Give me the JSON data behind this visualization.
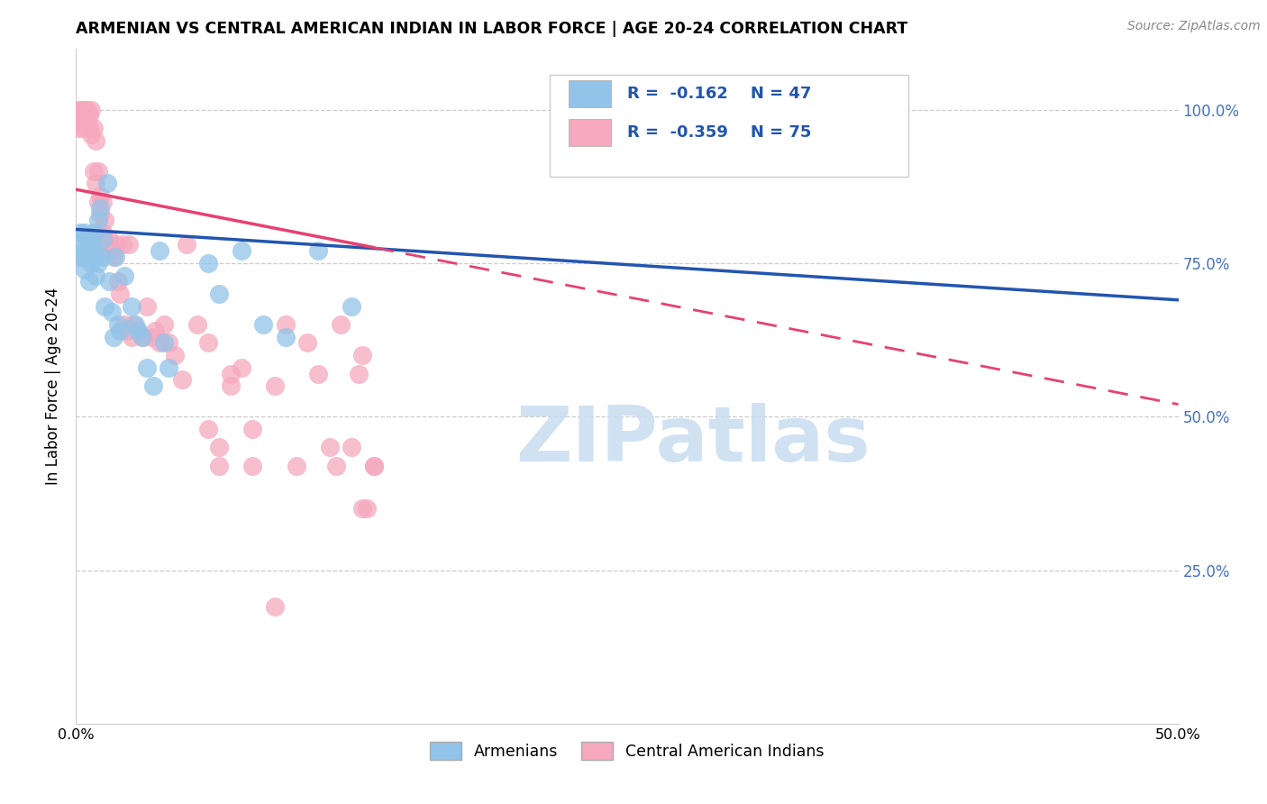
{
  "title": "ARMENIAN VS CENTRAL AMERICAN INDIAN IN LABOR FORCE | AGE 20-24 CORRELATION CHART",
  "source": "Source: ZipAtlas.com",
  "ylabel": "In Labor Force | Age 20-24",
  "xlim": [
    0.0,
    0.5
  ],
  "ylim": [
    0.0,
    1.1
  ],
  "R_armenian": "-0.162",
  "N_armenian": "47",
  "R_central": "-0.359",
  "N_central": "75",
  "legend_armenian": "Armenians",
  "legend_central": "Central American Indians",
  "armenian_color": "#92C3E8",
  "central_color": "#F5A8BE",
  "armenian_line_color": "#2255B0",
  "central_line_color": "#E84070",
  "watermark_color": "#DDEEFF",
  "background_color": "#FFFFFF",
  "armenian_x": [
    0.001,
    0.002,
    0.002,
    0.003,
    0.003,
    0.004,
    0.004,
    0.005,
    0.005,
    0.006,
    0.006,
    0.007,
    0.007,
    0.008,
    0.008,
    0.009,
    0.009,
    0.01,
    0.01,
    0.011,
    0.012,
    0.012,
    0.013,
    0.014,
    0.015,
    0.016,
    0.017,
    0.018,
    0.019,
    0.02,
    0.022,
    0.025,
    0.027,
    0.028,
    0.03,
    0.032,
    0.035,
    0.038,
    0.04,
    0.042,
    0.06,
    0.065,
    0.075,
    0.085,
    0.095,
    0.11,
    0.125
  ],
  "armenian_y": [
    0.78,
    0.76,
    0.8,
    0.77,
    0.76,
    0.74,
    0.8,
    0.79,
    0.76,
    0.78,
    0.72,
    0.75,
    0.79,
    0.77,
    0.8,
    0.76,
    0.73,
    0.82,
    0.75,
    0.84,
    0.76,
    0.79,
    0.68,
    0.88,
    0.72,
    0.67,
    0.63,
    0.76,
    0.65,
    0.64,
    0.73,
    0.68,
    0.65,
    0.64,
    0.63,
    0.58,
    0.55,
    0.77,
    0.62,
    0.58,
    0.75,
    0.7,
    0.77,
    0.65,
    0.63,
    0.77,
    0.68
  ],
  "central_x": [
    0.001,
    0.001,
    0.002,
    0.002,
    0.003,
    0.003,
    0.004,
    0.004,
    0.005,
    0.005,
    0.006,
    0.006,
    0.007,
    0.007,
    0.008,
    0.008,
    0.009,
    0.009,
    0.01,
    0.01,
    0.011,
    0.011,
    0.012,
    0.012,
    0.013,
    0.014,
    0.015,
    0.016,
    0.017,
    0.018,
    0.019,
    0.02,
    0.021,
    0.022,
    0.023,
    0.024,
    0.025,
    0.026,
    0.028,
    0.03,
    0.032,
    0.034,
    0.036,
    0.038,
    0.04,
    0.042,
    0.045,
    0.048,
    0.05,
    0.055,
    0.06,
    0.065,
    0.07,
    0.075,
    0.08,
    0.09,
    0.095,
    0.1,
    0.105,
    0.11,
    0.115,
    0.118,
    0.12,
    0.125,
    0.128,
    0.13,
    0.13,
    0.132,
    0.135,
    0.135,
    0.06,
    0.065,
    0.07,
    0.08,
    0.09
  ],
  "central_y": [
    1.0,
    0.97,
    1.0,
    0.98,
    1.0,
    0.97,
    1.0,
    0.99,
    0.98,
    1.0,
    0.99,
    0.97,
    1.0,
    0.96,
    0.97,
    0.9,
    0.95,
    0.88,
    0.9,
    0.85,
    0.83,
    0.86,
    0.85,
    0.8,
    0.82,
    0.78,
    0.79,
    0.77,
    0.76,
    0.78,
    0.72,
    0.7,
    0.78,
    0.65,
    0.64,
    0.78,
    0.63,
    0.65,
    0.64,
    0.63,
    0.68,
    0.63,
    0.64,
    0.62,
    0.65,
    0.62,
    0.6,
    0.56,
    0.78,
    0.65,
    0.62,
    0.45,
    0.55,
    0.58,
    0.48,
    0.55,
    0.65,
    0.42,
    0.62,
    0.57,
    0.45,
    0.42,
    0.65,
    0.45,
    0.57,
    0.6,
    0.35,
    0.35,
    0.42,
    0.42,
    0.48,
    0.42,
    0.57,
    0.42,
    0.19
  ]
}
